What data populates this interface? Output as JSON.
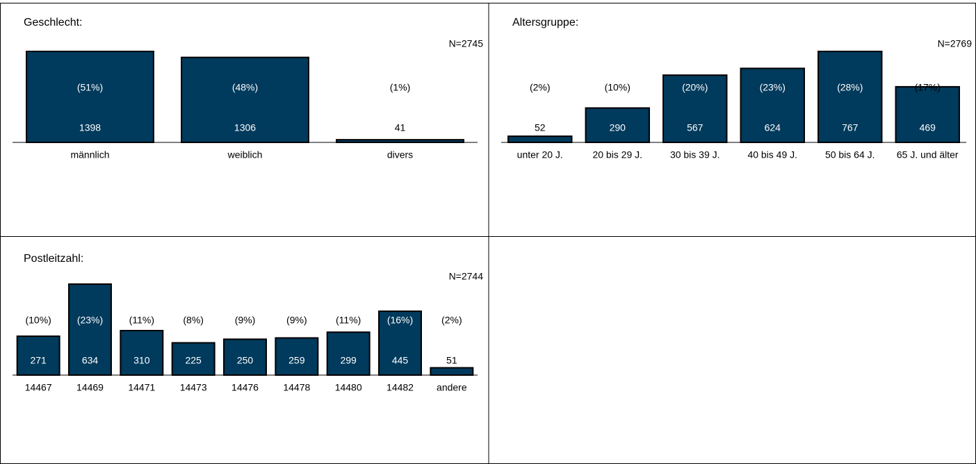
{
  "chart_data": [
    {
      "type": "bar",
      "title": "Geschlecht:",
      "n_label": "N=2745",
      "color": "#003a5c",
      "categories": [
        "männlich",
        "weiblich",
        "divers"
      ],
      "values": [
        1398,
        1306,
        41
      ],
      "percent_labels": [
        "(51%)",
        "(48%)",
        "(1%)"
      ]
    },
    {
      "type": "bar",
      "title": "Altersgruppe:",
      "n_label": "N=2769",
      "color": "#003a5c",
      "categories": [
        "unter 20 J.",
        "20 bis 29 J.",
        "30 bis 39 J.",
        "40 bis 49 J.",
        "50 bis 64 J.",
        "65 J. und älter"
      ],
      "values": [
        52,
        290,
        567,
        624,
        767,
        469
      ],
      "percent_labels": [
        "(2%)",
        "(10%)",
        "(20%)",
        "(23%)",
        "(28%)",
        "(17%)"
      ]
    },
    {
      "type": "bar",
      "title": "Postleitzahl:",
      "n_label": "N=2744",
      "color": "#003a5c",
      "categories": [
        "14467",
        "14469",
        "14471",
        "14473",
        "14476",
        "14478",
        "14480",
        "14482",
        "andere"
      ],
      "values": [
        271,
        634,
        310,
        225,
        250,
        259,
        299,
        445,
        51
      ],
      "percent_labels": [
        "(10%)",
        "(23%)",
        "(11%)",
        "(8%)",
        "(9%)",
        "(9%)",
        "(11%)",
        "(16%)",
        "(2%)"
      ]
    }
  ]
}
